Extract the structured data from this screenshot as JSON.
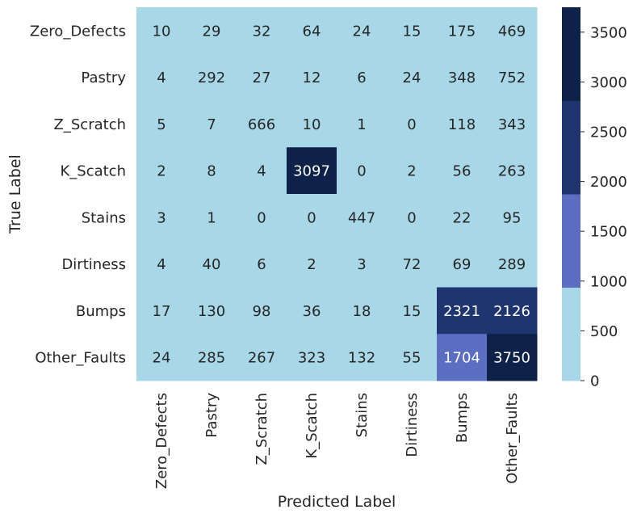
{
  "chart_data": {
    "type": "heatmap",
    "xlabel": "Predicted Label",
    "ylabel": "True Label",
    "x_categories": [
      "Zero_Defects",
      "Pastry",
      "Z_Scratch",
      "K_Scatch",
      "Stains",
      "Dirtiness",
      "Bumps",
      "Other_Faults"
    ],
    "y_categories": [
      "Zero_Defects",
      "Pastry",
      "Z_Scratch",
      "K_Scatch",
      "Stains",
      "Dirtiness",
      "Bumps",
      "Other_Faults"
    ],
    "values": [
      [
        10,
        29,
        32,
        64,
        24,
        15,
        175,
        469
      ],
      [
        4,
        292,
        27,
        12,
        6,
        24,
        348,
        752
      ],
      [
        5,
        7,
        666,
        10,
        1,
        0,
        118,
        343
      ],
      [
        2,
        8,
        4,
        3097,
        0,
        2,
        56,
        263
      ],
      [
        3,
        1,
        0,
        0,
        447,
        0,
        22,
        95
      ],
      [
        4,
        40,
        6,
        2,
        3,
        72,
        69,
        289
      ],
      [
        17,
        130,
        98,
        36,
        18,
        15,
        2321,
        2126
      ],
      [
        24,
        285,
        267,
        323,
        132,
        55,
        1704,
        3750
      ]
    ],
    "value_range": [
      0,
      3750
    ],
    "colorbar": {
      "ticks": [
        0,
        500,
        1000,
        1500,
        2000,
        2500,
        3000,
        3500
      ],
      "color_bins": [
        {
          "from": 0,
          "to": 937.5,
          "color": "#a8d8e8"
        },
        {
          "from": 937.5,
          "to": 1875,
          "color": "#5b6ec2"
        },
        {
          "from": 1875,
          "to": 2812.5,
          "color": "#1f3570"
        },
        {
          "from": 2812.5,
          "to": 3750,
          "color": "#0e2148"
        }
      ]
    },
    "label_colors": {
      "light_bg": "#262626",
      "dark_bg": "#ffffff"
    }
  }
}
